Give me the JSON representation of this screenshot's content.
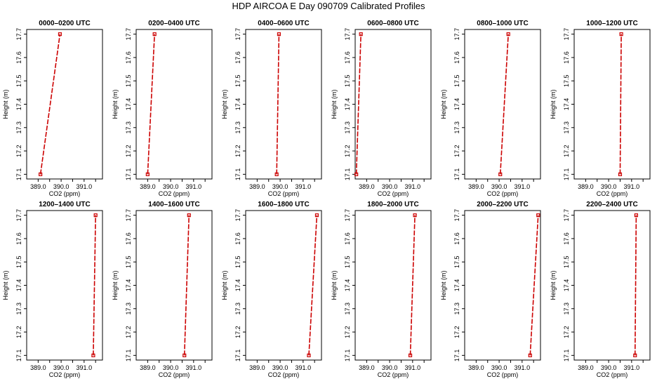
{
  "page_title": "HDP AIRCOA E  Day 090709  Calibrated Profiles",
  "chart_data": [
    {
      "type": "line",
      "title": "0000–0200 UTC",
      "xlabel": "CO2 (ppm)",
      "ylabel": "Height (m)",
      "xticks": [
        "389.0",
        "390.0",
        "391.0"
      ],
      "yticks": [
        "17.1",
        "17.2",
        "17.3",
        "17.4",
        "17.5",
        "17.6",
        "17.7"
      ],
      "xlim": [
        388.5,
        391.8
      ],
      "ylim": [
        17.08,
        17.72
      ],
      "grid": false,
      "series": [
        {
          "x": [
            389.1,
            389.95
          ],
          "y": [
            17.1,
            17.7
          ]
        }
      ]
    },
    {
      "type": "line",
      "title": "0200–0400 UTC",
      "xlabel": "CO2 (ppm)",
      "ylabel": "Height (m)",
      "xticks": [
        "389.0",
        "390.0",
        "391.0"
      ],
      "yticks": [
        "17.1",
        "17.2",
        "17.3",
        "17.4",
        "17.5",
        "17.6",
        "17.7"
      ],
      "xlim": [
        388.5,
        391.8
      ],
      "ylim": [
        17.08,
        17.72
      ],
      "grid": false,
      "series": [
        {
          "x": [
            389.0,
            389.3
          ],
          "y": [
            17.1,
            17.7
          ]
        }
      ]
    },
    {
      "type": "line",
      "title": "0400–0600 UTC",
      "xlabel": "CO2 (ppm)",
      "ylabel": "Height (m)",
      "xticks": [
        "389.0",
        "390.0",
        "391.0"
      ],
      "yticks": [
        "17.1",
        "17.2",
        "17.3",
        "17.4",
        "17.5",
        "17.6",
        "17.7"
      ],
      "xlim": [
        388.5,
        391.8
      ],
      "ylim": [
        17.08,
        17.72
      ],
      "grid": false,
      "series": [
        {
          "x": [
            389.85,
            389.95
          ],
          "y": [
            17.1,
            17.7
          ]
        }
      ]
    },
    {
      "type": "line",
      "title": "0600–0800 UTC",
      "xlabel": "CO2 (ppm)",
      "ylabel": "Height (m)",
      "xticks": [
        "389.0",
        "390.0",
        "391.0"
      ],
      "yticks": [
        "17.1",
        "17.2",
        "17.3",
        "17.4",
        "17.5",
        "17.6",
        "17.7"
      ],
      "xlim": [
        388.5,
        391.8
      ],
      "ylim": [
        17.08,
        17.72
      ],
      "grid": false,
      "series": [
        {
          "x": [
            388.55,
            388.75
          ],
          "y": [
            17.1,
            17.7
          ]
        }
      ]
    },
    {
      "type": "line",
      "title": "0800–1000 UTC",
      "xlabel": "CO2 (ppm)",
      "ylabel": "Height (m)",
      "xticks": [
        "389.0",
        "390.0",
        "391.0"
      ],
      "yticks": [
        "17.1",
        "17.2",
        "17.3",
        "17.4",
        "17.5",
        "17.6",
        "17.7"
      ],
      "xlim": [
        388.5,
        391.8
      ],
      "ylim": [
        17.08,
        17.72
      ],
      "grid": false,
      "series": [
        {
          "x": [
            390.05,
            390.4
          ],
          "y": [
            17.1,
            17.7
          ]
        }
      ]
    },
    {
      "type": "line",
      "title": "1000–1200 UTC",
      "xlabel": "CO2 (ppm)",
      "ylabel": "Height (m)",
      "xticks": [
        "389.0",
        "390.0",
        "391.0"
      ],
      "yticks": [
        "17.1",
        "17.2",
        "17.3",
        "17.4",
        "17.5",
        "17.6",
        "17.7"
      ],
      "xlim": [
        388.5,
        391.8
      ],
      "ylim": [
        17.08,
        17.72
      ],
      "grid": false,
      "series": [
        {
          "x": [
            390.5,
            390.55
          ],
          "y": [
            17.1,
            17.7
          ]
        }
      ]
    },
    {
      "type": "line",
      "title": "1200–1400 UTC",
      "xlabel": "CO2 (ppm)",
      "ylabel": "Height (m)",
      "xticks": [
        "389.0",
        "390.0",
        "391.0"
      ],
      "yticks": [
        "17.1",
        "17.2",
        "17.3",
        "17.4",
        "17.5",
        "17.6",
        "17.7"
      ],
      "xlim": [
        388.5,
        391.8
      ],
      "ylim": [
        17.08,
        17.72
      ],
      "grid": false,
      "series": [
        {
          "x": [
            391.4,
            391.5
          ],
          "y": [
            17.1,
            17.7
          ]
        }
      ]
    },
    {
      "type": "line",
      "title": "1400–1600 UTC",
      "xlabel": "CO2 (ppm)",
      "ylabel": "Height (m)",
      "xticks": [
        "389.0",
        "390.0",
        "391.0"
      ],
      "yticks": [
        "17.1",
        "17.2",
        "17.3",
        "17.4",
        "17.5",
        "17.6",
        "17.7"
      ],
      "xlim": [
        388.5,
        391.8
      ],
      "ylim": [
        17.08,
        17.72
      ],
      "grid": false,
      "series": [
        {
          "x": [
            390.6,
            390.8
          ],
          "y": [
            17.1,
            17.7
          ]
        }
      ]
    },
    {
      "type": "line",
      "title": "1600–1800 UTC",
      "xlabel": "CO2 (ppm)",
      "ylabel": "Height (m)",
      "xticks": [
        "389.0",
        "390.0",
        "391.0"
      ],
      "yticks": [
        "17.1",
        "17.2",
        "17.3",
        "17.4",
        "17.5",
        "17.6",
        "17.7"
      ],
      "xlim": [
        388.5,
        391.8
      ],
      "ylim": [
        17.08,
        17.72
      ],
      "grid": false,
      "series": [
        {
          "x": [
            391.25,
            391.6
          ],
          "y": [
            17.1,
            17.7
          ]
        }
      ]
    },
    {
      "type": "line",
      "title": "1800–2000 UTC",
      "xlabel": "CO2 (ppm)",
      "ylabel": "Height (m)",
      "xticks": [
        "389.0",
        "390.0",
        "391.0"
      ],
      "yticks": [
        "17.1",
        "17.2",
        "17.3",
        "17.4",
        "17.5",
        "17.6",
        "17.7"
      ],
      "xlim": [
        388.5,
        391.8
      ],
      "ylim": [
        17.08,
        17.72
      ],
      "grid": false,
      "series": [
        {
          "x": [
            390.9,
            391.1
          ],
          "y": [
            17.1,
            17.7
          ]
        }
      ]
    },
    {
      "type": "line",
      "title": "2000–2200 UTC",
      "xlabel": "CO2 (ppm)",
      "ylabel": "Height (m)",
      "xticks": [
        "389.0",
        "390.0",
        "391.0"
      ],
      "yticks": [
        "17.1",
        "17.2",
        "17.3",
        "17.4",
        "17.5",
        "17.6",
        "17.7"
      ],
      "xlim": [
        388.5,
        391.8
      ],
      "ylim": [
        17.08,
        17.72
      ],
      "grid": false,
      "series": [
        {
          "x": [
            391.35,
            391.7
          ],
          "y": [
            17.1,
            17.7
          ]
        }
      ]
    },
    {
      "type": "line",
      "title": "2200–2400 UTC",
      "xlabel": "CO2 (ppm)",
      "ylabel": "Height (m)",
      "xticks": [
        "389.0",
        "390.0",
        "391.0"
      ],
      "yticks": [
        "17.1",
        "17.2",
        "17.3",
        "17.4",
        "17.5",
        "17.6",
        "17.7"
      ],
      "xlim": [
        388.5,
        391.8
      ],
      "ylim": [
        17.08,
        17.72
      ],
      "grid": false,
      "series": [
        {
          "x": [
            391.15,
            391.2
          ],
          "y": [
            17.1,
            17.7
          ]
        }
      ]
    }
  ],
  "colors": {
    "series": "#cc0000",
    "axes": "#000000"
  }
}
